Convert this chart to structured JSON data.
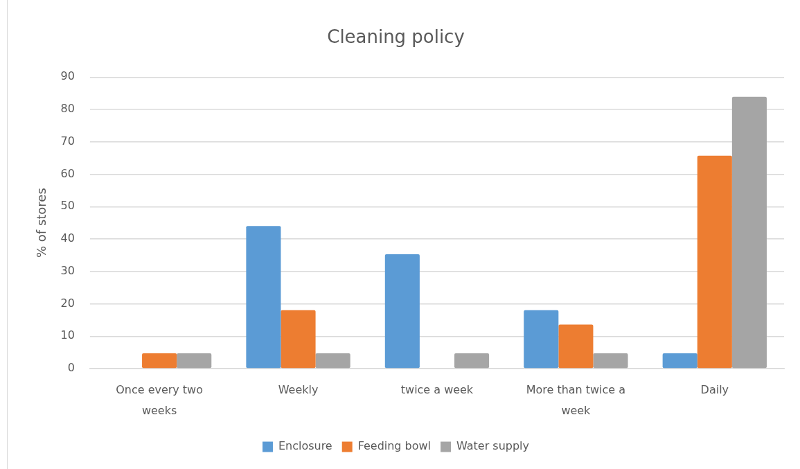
{
  "chart_data": {
    "type": "bar",
    "title": "Cleaning policy",
    "ylabel": "% of stores",
    "categories": [
      "Once every two weeks",
      "Weekly",
      "twice a week",
      "More than twice a week",
      "Daily"
    ],
    "series": [
      {
        "name": "Enclosure",
        "color": "#5b9bd5",
        "values": [
          0,
          44,
          35.3,
          18,
          4.7
        ]
      },
      {
        "name": "Feeding bowl",
        "color": "#ed7d31",
        "values": [
          4.7,
          18,
          0,
          13.6,
          65.7
        ]
      },
      {
        "name": "Water supply",
        "color": "#a5a5a5",
        "values": [
          4.7,
          4.7,
          4.7,
          4.7,
          83.9
        ]
      }
    ],
    "ylim": [
      0,
      90
    ],
    "yticks": [
      0,
      10,
      20,
      30,
      40,
      50,
      60,
      70,
      80,
      90
    ],
    "grid": "y",
    "legend": "bottom"
  }
}
